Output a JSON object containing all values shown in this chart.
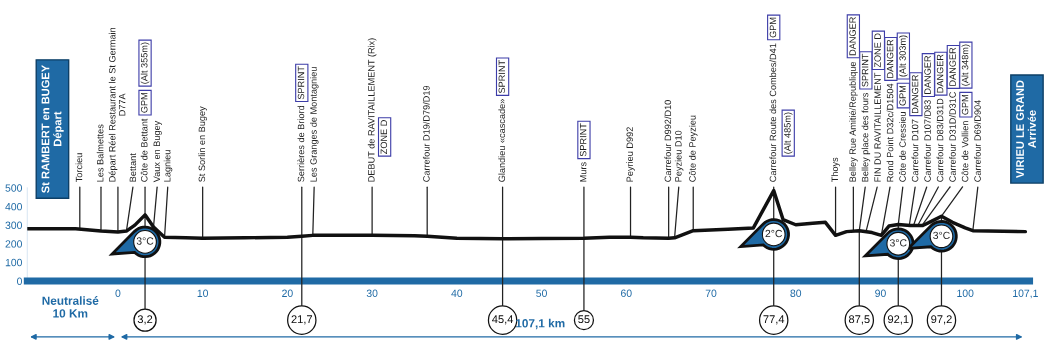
{
  "chart_data": {
    "type": "line",
    "series": [
      {
        "color": "#111111",
        "x": [
          -10.7,
          -7,
          -5,
          -2,
          0,
          1,
          2,
          3.2,
          4.2,
          5.5,
          8,
          10,
          15,
          20,
          21.7,
          23,
          30,
          35,
          36.5,
          40,
          45.4,
          50,
          55,
          58,
          60.5,
          62,
          65,
          65.7,
          67.9,
          72,
          75,
          77.4,
          78.5,
          80,
          82,
          83.5,
          84.7,
          86,
          87.5,
          89,
          90.1,
          91,
          92.1,
          93.5,
          95,
          96,
          97.2,
          98.5,
          100,
          100.9,
          107.1
        ],
        "values": [
          280,
          280,
          280,
          268,
          263,
          268,
          300,
          355,
          290,
          235,
          232,
          230,
          232,
          235,
          240,
          245,
          245,
          243,
          240,
          230,
          227,
          228,
          230,
          235,
          235,
          232,
          230,
          232,
          270,
          278,
          285,
          485,
          330,
          302,
          310,
          315,
          245,
          265,
          270,
          260,
          245,
          295,
          303,
          298,
          298,
          320,
          348,
          315,
          285,
          270,
          265
        ]
      }
    ],
    "xlim": [
      -10.7,
      107.6
    ],
    "ylim": [
      0,
      500
    ],
    "xticks": [
      0,
      10,
      20,
      30,
      40,
      50,
      60,
      70,
      80,
      90,
      100,
      {
        "value": 107.1,
        "label": "107,1"
      }
    ],
    "yticks": [
      0,
      100,
      200,
      300,
      400,
      500
    ],
    "grid": false,
    "legend": false,
    "annotations": [
      {
        "text": "Torcieu",
        "x": -4.5,
        "y": 280
      },
      {
        "text": "Les Balmettes",
        "x": -2,
        "y": 268
      },
      {
        "text": "Départ Réel Restaurant le St Germain\nD77A",
        "x": 0,
        "y": 263
      },
      {
        "text": "Bettant",
        "x": 1,
        "y": 268
      },
      {
        "text": "Côte de Bettant",
        "x": 3.2,
        "y": 355
      },
      "GPM",
      "(Alt 355m)",
      {
        "text": "Vaux en Bugey",
        "x": 4.2,
        "y": 290
      },
      {
        "text": "Lagnieu",
        "x": 5.5,
        "y": 235
      },
      {
        "text": "St Sorlin en Bugey",
        "x": 10,
        "y": 230
      },
      {
        "text": "Serrières de Briord",
        "x": 21.7,
        "y": 240
      },
      "SPRINT",
      {
        "text": "Les Granges de Montagnieu",
        "x": 23,
        "y": 245
      },
      {
        "text": "DEBUT de RAVITAILLEMENT (Rix)",
        "x": 30,
        "y": 245
      },
      "ZONE D",
      {
        "text": "Carrefour D19/D79/D19",
        "x": 36.5,
        "y": 240
      },
      {
        "text": "Glandieu «cascade»",
        "x": 45.4,
        "y": 227
      },
      "SPRINT",
      {
        "text": "Murs",
        "x": 55,
        "y": 230
      },
      "SPRINT",
      {
        "text": "Peyrieu D992",
        "x": 60.5,
        "y": 235
      },
      {
        "text": "Carrefour D992/D10",
        "x": 65,
        "y": 230
      },
      {
        "text": "Peyzieu D10",
        "x": 65.7,
        "y": 232
      },
      {
        "text": "Côte de Peyzieu",
        "x": 67.9,
        "y": 270
      },
      {
        "text": "Carrefour Route des Combes/D41",
        "x": 77.4,
        "y": 485
      },
      "GPM",
      "(Alt 485m)",
      {
        "text": "Thoys",
        "x": 84.7,
        "y": 245
      },
      {
        "text": "Belley Rue Amitié/Republique",
        "x": 86.8,
        "y": 268
      },
      "DANGER",
      {
        "text": "Belley place des fours",
        "x": 87.5,
        "y": 270
      },
      "SPRINT",
      {
        "text": "FIN DU RAVITAILLEMENT",
        "x": 88.3,
        "y": 266
      },
      "ZONE D",
      {
        "text": "Rond Point D32c/D1504",
        "x": 90.1,
        "y": 245
      },
      "DANGER",
      {
        "text": "Côte de Cressieu",
        "x": 92.1,
        "y": 303
      },
      "GPM",
      "(Alt 303m)",
      {
        "text": "Carrefour D107",
        "x": 93.4,
        "y": 298
      },
      "DANGER",
      {
        "text": "Carrefour D107/D83",
        "x": 93.9,
        "y": 298
      },
      "DANGER",
      {
        "text": "Carrefour D83/D31D",
        "x": 94.4,
        "y": 298
      },
      "DANGER",
      {
        "text": "Carrefour D31D/D31C",
        "x": 94.9,
        "y": 298
      },
      "DANGER",
      {
        "text": "Côte de Vollien",
        "x": 97.2,
        "y": 348
      },
      "GPM",
      "(Alt 348m)",
      {
        "text": "Carrefour D69/D904",
        "x": 100.9,
        "y": 270
      },
      {
        "text": "3°C",
        "x": 3.2,
        "y": 210
      },
      {
        "text": "2°C",
        "x": 77.4,
        "y": 250
      },
      {
        "text": "3°C",
        "x": 92.1,
        "y": 200
      },
      {
        "text": "3°C",
        "x": 97.2,
        "y": 240
      },
      {
        "text": "3,2",
        "x": 3.2
      },
      {
        "text": "21,7",
        "x": 21.7
      },
      {
        "text": "45,4",
        "x": 45.4
      },
      {
        "text": "55",
        "x": 55
      },
      {
        "text": "77,4",
        "x": 77.4
      },
      {
        "text": "87,5",
        "x": 87.5
      },
      {
        "text": "92,1",
        "x": 92.1
      },
      {
        "text": "97,2",
        "x": 97.2
      },
      "St RAMBERT en BUGEY\nDépart",
      "VIRIEU LE GRAND\nArrivée",
      "Neutralisé\n10 Km",
      "107,1 km"
    ]
  }
}
